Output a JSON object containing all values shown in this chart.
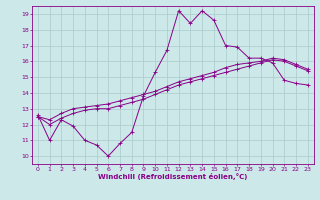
{
  "xlabel": "Windchill (Refroidissement éolien,°C)",
  "xlim": [
    -0.5,
    23.5
  ],
  "ylim": [
    9.5,
    19.5
  ],
  "yticks": [
    10,
    11,
    12,
    13,
    14,
    15,
    16,
    17,
    18,
    19
  ],
  "xticks": [
    0,
    1,
    2,
    3,
    4,
    5,
    6,
    7,
    8,
    9,
    10,
    11,
    12,
    13,
    14,
    15,
    16,
    17,
    18,
    19,
    20,
    21,
    22,
    23
  ],
  "background_color": "#cce8e8",
  "grid_color": "#aacccc",
  "line_color": "#880088",
  "line1_x": [
    0,
    1,
    2,
    3,
    4,
    5,
    6,
    7,
    8,
    9,
    10,
    11,
    12,
    13,
    14,
    15,
    16,
    17,
    18,
    19,
    20,
    21,
    22,
    23
  ],
  "line1_y": [
    12.6,
    11.0,
    12.3,
    11.9,
    11.0,
    10.7,
    10.0,
    10.8,
    11.5,
    13.8,
    15.3,
    16.7,
    19.2,
    18.4,
    19.2,
    18.6,
    17.0,
    16.9,
    16.2,
    16.2,
    15.9,
    14.8,
    14.6,
    14.5
  ],
  "line2_x": [
    0,
    1,
    2,
    3,
    4,
    5,
    6,
    7,
    8,
    9,
    10,
    11,
    12,
    13,
    14,
    15,
    16,
    17,
    18,
    19,
    20,
    21,
    22,
    23
  ],
  "line2_y": [
    12.5,
    12.0,
    12.4,
    12.7,
    12.9,
    13.0,
    13.0,
    13.2,
    13.4,
    13.6,
    13.9,
    14.2,
    14.5,
    14.7,
    14.9,
    15.1,
    15.3,
    15.5,
    15.7,
    15.9,
    16.1,
    16.0,
    15.7,
    15.4
  ],
  "line3_x": [
    0,
    1,
    2,
    3,
    4,
    5,
    6,
    7,
    8,
    9,
    10,
    11,
    12,
    13,
    14,
    15,
    16,
    17,
    18,
    19,
    20,
    21,
    22,
    23
  ],
  "line3_y": [
    12.5,
    12.3,
    12.7,
    13.0,
    13.1,
    13.2,
    13.3,
    13.5,
    13.7,
    13.9,
    14.1,
    14.4,
    14.7,
    14.9,
    15.1,
    15.3,
    15.6,
    15.8,
    15.9,
    16.0,
    16.2,
    16.1,
    15.8,
    15.5
  ],
  "marker": "+"
}
